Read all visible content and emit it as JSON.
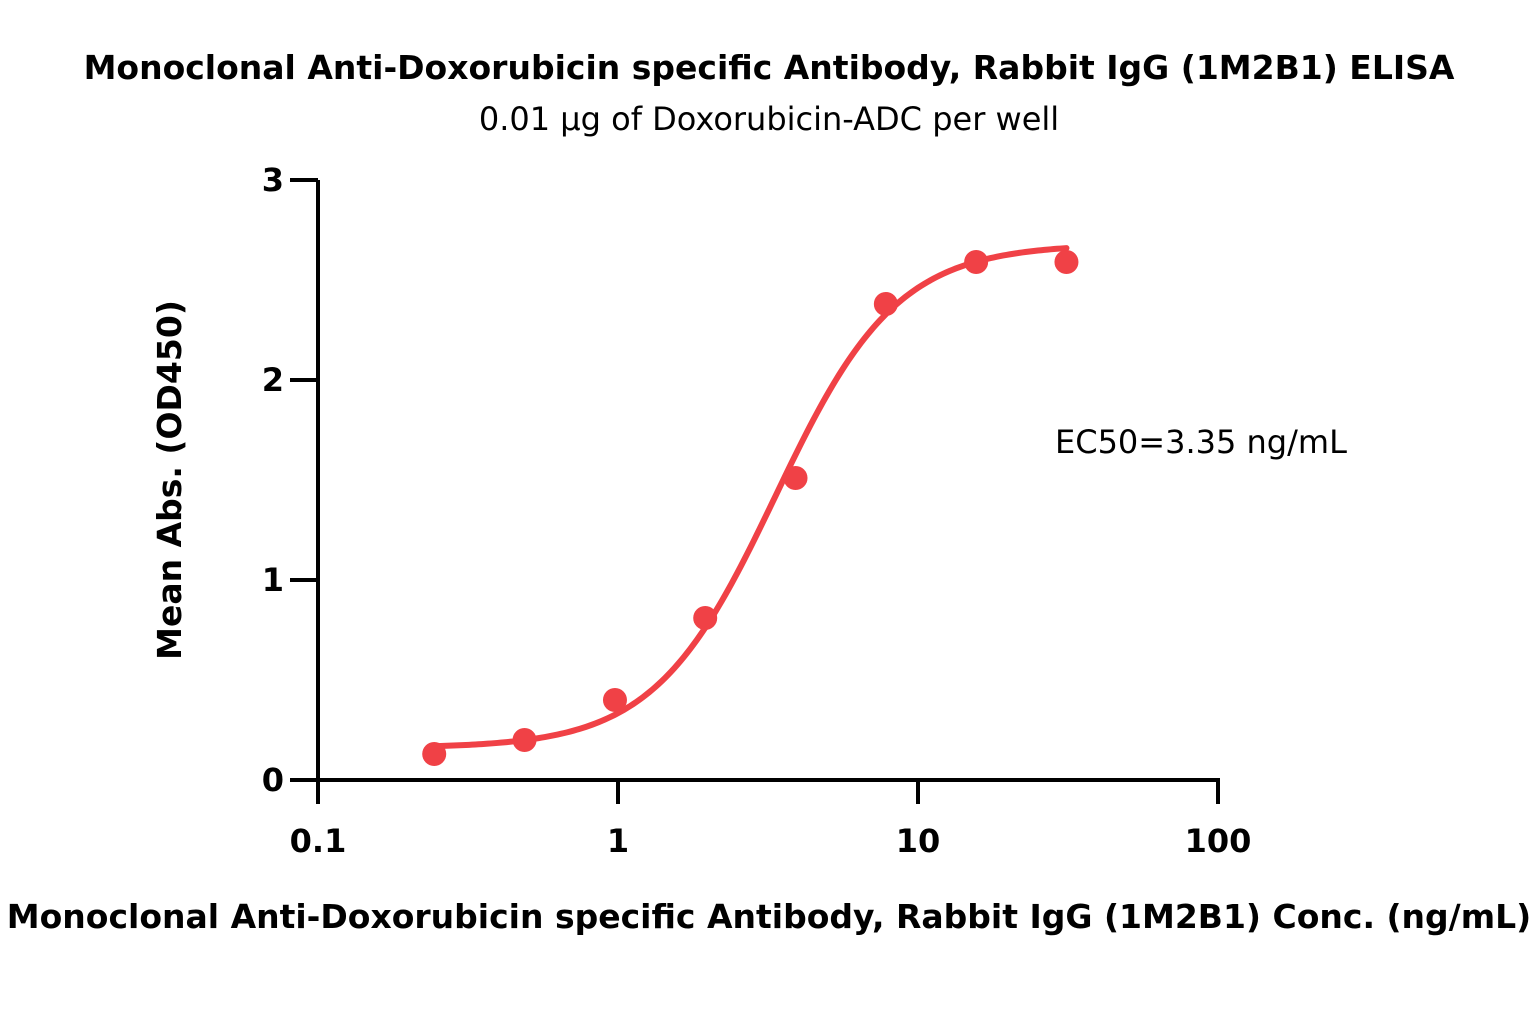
{
  "chart_data": {
    "type": "scatter",
    "title": "Monoclonal Anti-Doxorubicin specific Antibody, Rabbit IgG (1M2B1) ELISA",
    "subtitle": "0.01 µg of Doxorubicin-ADC per well",
    "xlabel": "Monoclonal Anti-Doxorubicin specific Antibody, Rabbit IgG (1M2B1) Conc. (ng/mL)",
    "ylabel": "Mean Abs. (OD450)",
    "x_scale": "log",
    "xlim": [
      0.1,
      100
    ],
    "ylim": [
      0,
      3
    ],
    "x_ticks": [
      "0.1",
      "1",
      "10",
      "100"
    ],
    "y_ticks": [
      "0",
      "1",
      "2",
      "3"
    ],
    "grid": false,
    "color": "#f04146",
    "series": [
      {
        "x": [
          0.244,
          0.488,
          0.977,
          1.953,
          3.906,
          7.813,
          15.625,
          31.25
        ],
        "y": [
          0.13,
          0.2,
          0.4,
          0.81,
          1.51,
          2.38,
          2.59,
          2.59
        ]
      }
    ],
    "fit": {
      "model": "4PL",
      "bottom": 0.16,
      "top": 2.68,
      "ec50": 3.35,
      "hill": 2.15
    },
    "annotation": "EC50=3.35 ng/mL"
  }
}
